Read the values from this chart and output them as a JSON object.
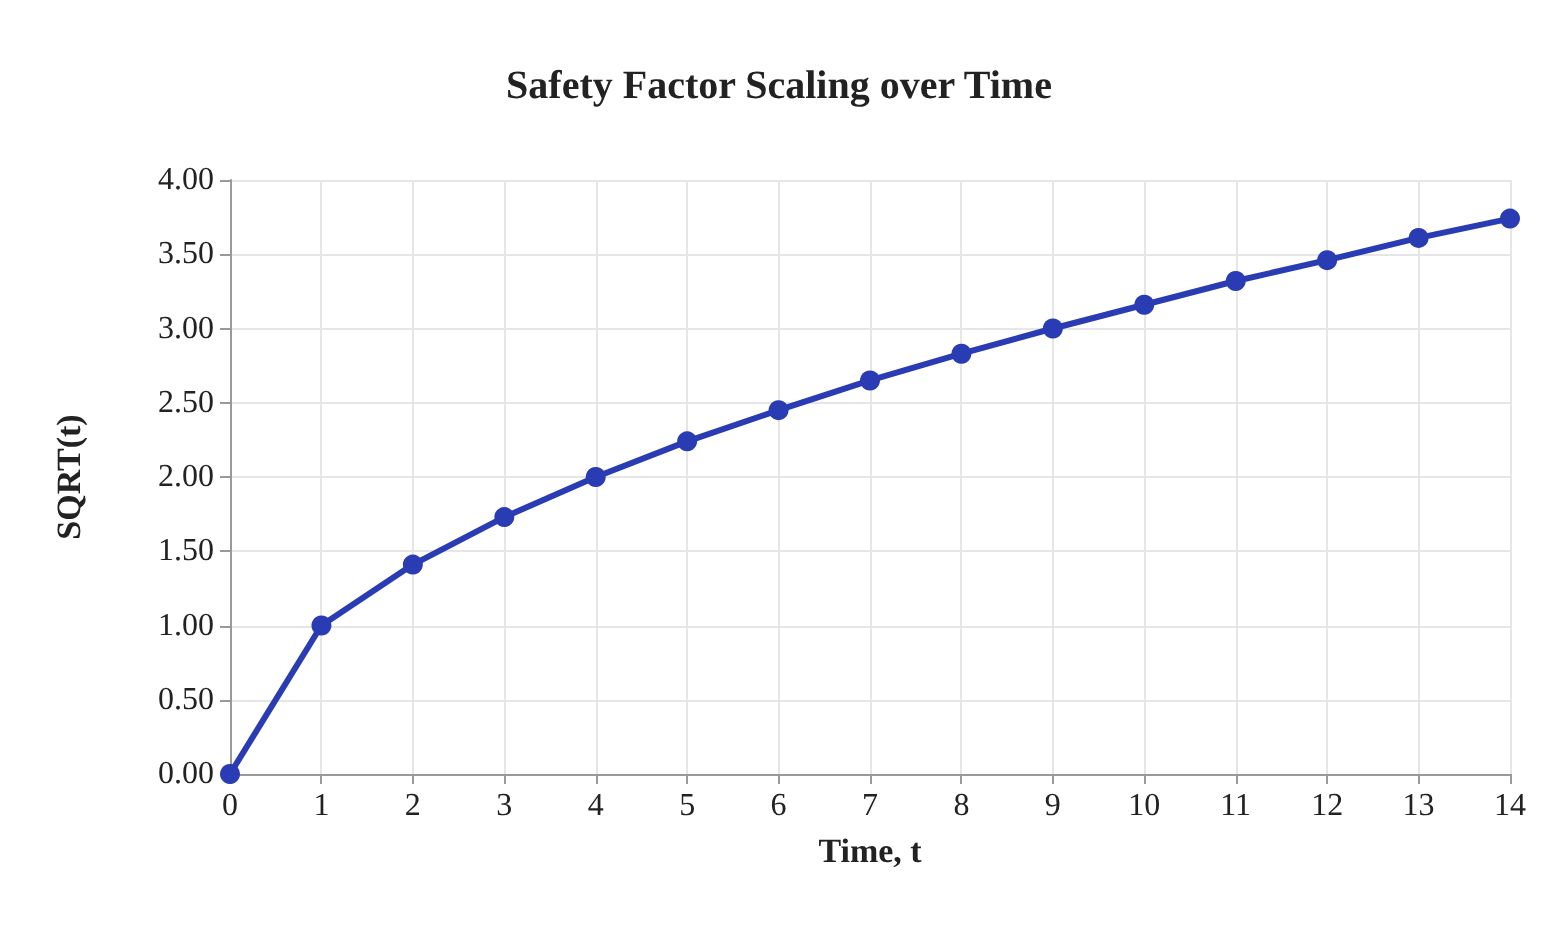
{
  "chart_data": {
    "type": "line",
    "title": "Safety Factor Scaling over Time",
    "xlabel": "Time, t",
    "ylabel": "SQRT(t)",
    "x": [
      0,
      1,
      2,
      3,
      4,
      5,
      6,
      7,
      8,
      9,
      10,
      11,
      12,
      13,
      14
    ],
    "series": [
      {
        "color": "#2a3cb4",
        "values": [
          0,
          1,
          1.41,
          1.73,
          2,
          2.24,
          2.45,
          2.65,
          2.83,
          3,
          3.16,
          3.32,
          3.46,
          3.61,
          3.74
        ]
      }
    ],
    "xlim": [
      0,
      14
    ],
    "xticks": [
      0,
      1,
      2,
      3,
      4,
      5,
      6,
      7,
      8,
      9,
      10,
      11,
      12,
      13,
      14
    ],
    "ylim": [
      0,
      4
    ],
    "yticks": [
      {
        "value": 0,
        "label": "0.00"
      },
      {
        "value": 0.5,
        "label": "0.50"
      },
      {
        "value": 1,
        "label": "1.00"
      },
      {
        "value": 1.5,
        "label": "1.50"
      },
      {
        "value": 2,
        "label": "2.00"
      },
      {
        "value": 2.5,
        "label": "2.50"
      },
      {
        "value": 3,
        "label": "3.00"
      },
      {
        "value": 3.5,
        "label": "3.50"
      },
      {
        "value": 4,
        "label": "4.00"
      }
    ],
    "grid": true,
    "marker": "circle",
    "line_style": "solid"
  }
}
